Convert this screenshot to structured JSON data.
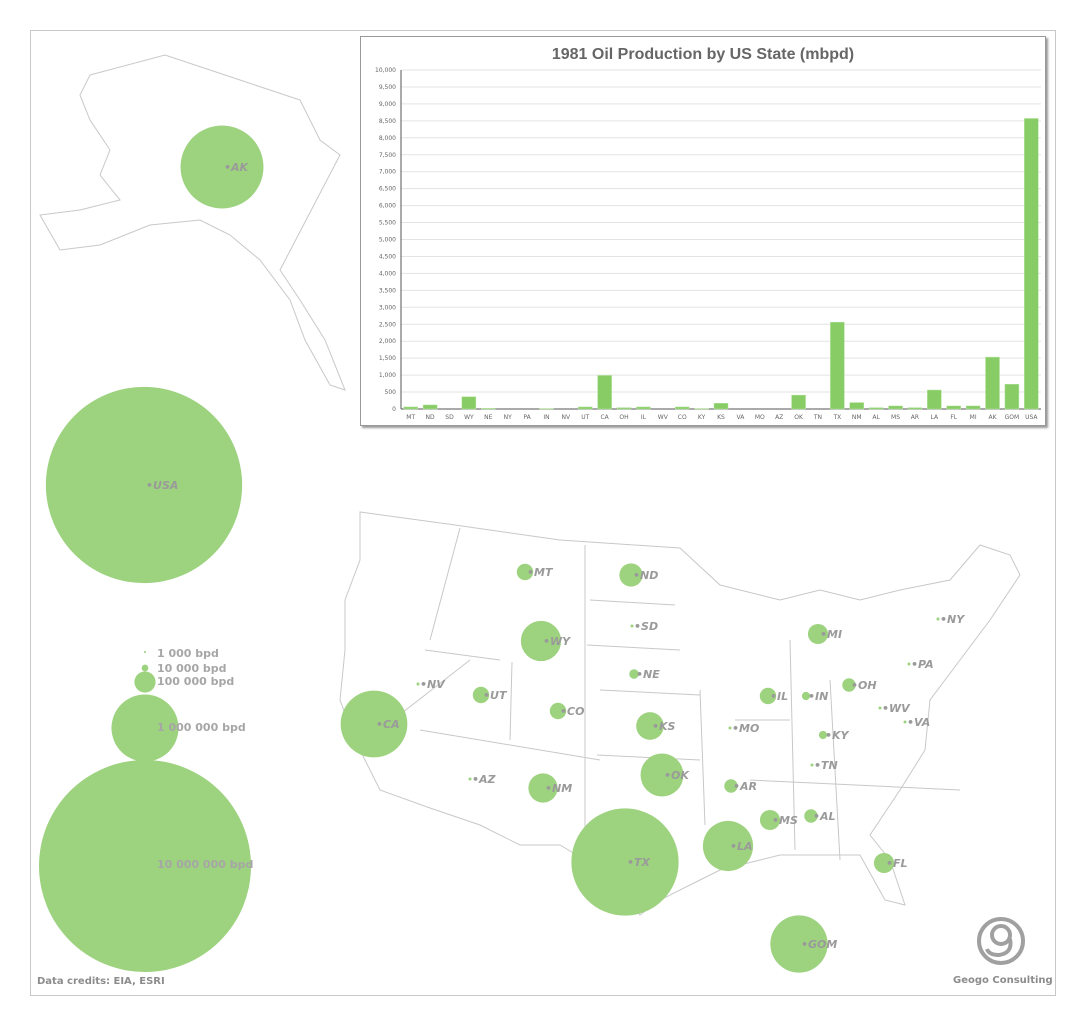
{
  "chart_data": {
    "type": "bar",
    "title": "1981 Oil Production by US State (mbpd)",
    "xlabel": "",
    "ylabel": "",
    "ylim": [
      0,
      10000
    ],
    "ytick_step": 500,
    "grid": true,
    "bar_color": "#88cc66",
    "categories": [
      "MT",
      "ND",
      "SD",
      "WY",
      "NE",
      "NY",
      "PA",
      "IN",
      "NV",
      "UT",
      "CA",
      "OH",
      "IL",
      "WV",
      "CO",
      "KY",
      "KS",
      "VA",
      "MO",
      "AZ",
      "OK",
      "TN",
      "TX",
      "NM",
      "AL",
      "MS",
      "AR",
      "LA",
      "FL",
      "MI",
      "AK",
      "GOM",
      "USA"
    ],
    "values": [
      60,
      120,
      0,
      360,
      20,
      0,
      0,
      15,
      0,
      60,
      990,
      40,
      60,
      0,
      60,
      15,
      170,
      0,
      0,
      0,
      410,
      0,
      2560,
      190,
      40,
      90,
      40,
      560,
      90,
      90,
      1530,
      730,
      8570
    ]
  },
  "map": {
    "bubble_color": "#9dd27f",
    "outline_color": "#c8c8c8",
    "label_color": "#9a9a9a"
  },
  "legend": {
    "items": [
      {
        "label": "1 000 bpd",
        "value": 1
      },
      {
        "label": "10 000 bpd",
        "value": 10
      },
      {
        "label": "100 000 bpd",
        "value": 100
      },
      {
        "label": "1 000 000 bpd",
        "value": 1000
      },
      {
        "label": "10 000 000 bpd",
        "value": 10000
      }
    ]
  },
  "footer": {
    "credits": "Data credits: EIA, ESRI",
    "company": "Geogo Consulting"
  }
}
